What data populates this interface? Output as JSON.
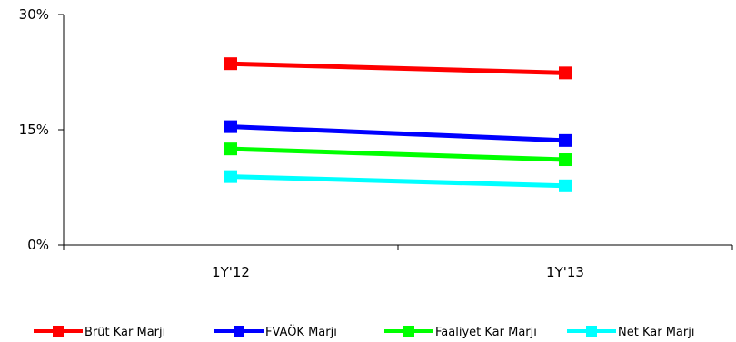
{
  "chart_data": {
    "type": "line",
    "categories": [
      "1Y'12",
      "1Y'13"
    ],
    "ylim": [
      0,
      30
    ],
    "yticks": [
      "0%",
      "15%",
      "30%"
    ],
    "ytick_values": [
      0,
      15,
      30
    ],
    "grid": false,
    "legend_position": "bottom",
    "series": [
      {
        "name": "Brüt Kar Marjı",
        "color": "#ff0000",
        "values": [
          23.6,
          22.4
        ]
      },
      {
        "name": "FVAÖK Marjı",
        "color": "#0000ff",
        "values": [
          15.4,
          13.6
        ]
      },
      {
        "name": "Faaliyet Kar Marjı",
        "color": "#00ff00",
        "values": [
          12.5,
          11.1
        ]
      },
      {
        "name": "Net Kar Marjı",
        "color": "#00ffff",
        "values": [
          8.9,
          7.7
        ]
      }
    ]
  }
}
